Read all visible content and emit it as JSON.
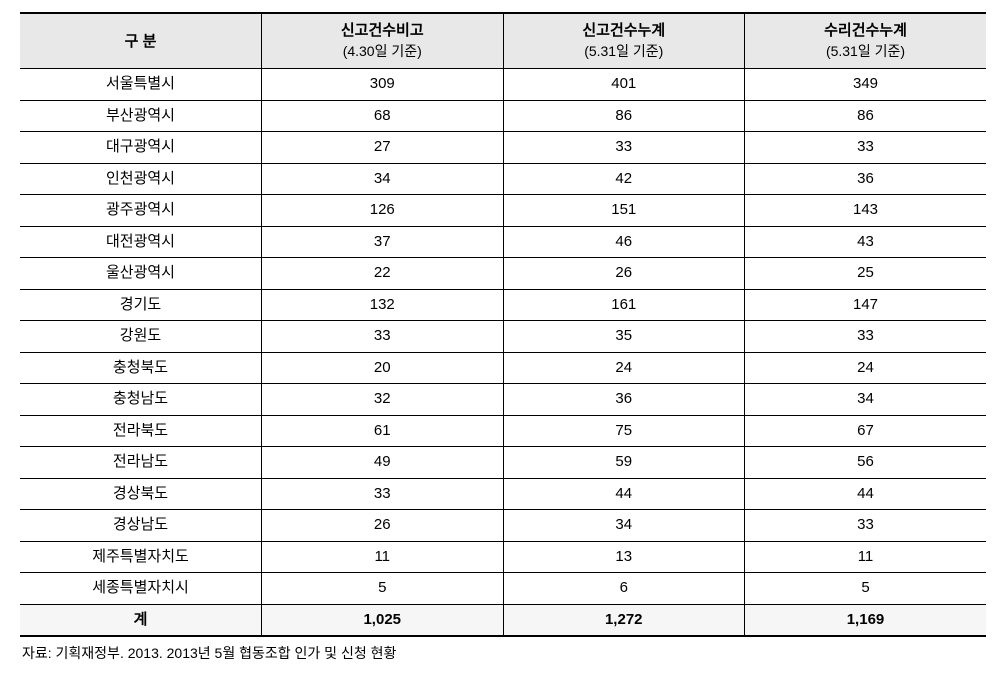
{
  "table": {
    "columns": [
      {
        "line1": "구 분",
        "line2": ""
      },
      {
        "line1": "신고건수비고",
        "line2": "(4.30일 기준)"
      },
      {
        "line1": "신고건수누계",
        "line2": "(5.31일 기준)"
      },
      {
        "line1": "수리건수누계",
        "line2": "(5.31일 기준)"
      }
    ],
    "rows": [
      {
        "region": "서울특별시",
        "v1": "309",
        "v2": "401",
        "v3": "349"
      },
      {
        "region": "부산광역시",
        "v1": "68",
        "v2": "86",
        "v3": "86"
      },
      {
        "region": "대구광역시",
        "v1": "27",
        "v2": "33",
        "v3": "33"
      },
      {
        "region": "인천광역시",
        "v1": "34",
        "v2": "42",
        "v3": "36"
      },
      {
        "region": "광주광역시",
        "v1": "126",
        "v2": "151",
        "v3": "143"
      },
      {
        "region": "대전광역시",
        "v1": "37",
        "v2": "46",
        "v3": "43"
      },
      {
        "region": "울산광역시",
        "v1": "22",
        "v2": "26",
        "v3": "25"
      },
      {
        "region": "경기도",
        "v1": "132",
        "v2": "161",
        "v3": "147"
      },
      {
        "region": "강원도",
        "v1": "33",
        "v2": "35",
        "v3": "33"
      },
      {
        "region": "충청북도",
        "v1": "20",
        "v2": "24",
        "v3": "24"
      },
      {
        "region": "충청남도",
        "v1": "32",
        "v2": "36",
        "v3": "34"
      },
      {
        "region": "전라북도",
        "v1": "61",
        "v2": "75",
        "v3": "67"
      },
      {
        "region": "전라남도",
        "v1": "49",
        "v2": "59",
        "v3": "56"
      },
      {
        "region": "경상북도",
        "v1": "33",
        "v2": "44",
        "v3": "44"
      },
      {
        "region": "경상남도",
        "v1": "26",
        "v2": "34",
        "v3": "33"
      },
      {
        "region": "제주특별자치도",
        "v1": "11",
        "v2": "13",
        "v3": "11"
      },
      {
        "region": "세종특별자치시",
        "v1": "5",
        "v2": "6",
        "v3": "5"
      }
    ],
    "total": {
      "label": "계",
      "v1": "1,025",
      "v2": "1,272",
      "v3": "1,169"
    },
    "footnote": "자료: 기획재정부. 2013. 2013년 5월 협동조합 인가 및 신청 현황"
  },
  "styling": {
    "background_color": "#ffffff",
    "header_bg": "#e8e8e8",
    "total_bg": "#f6f6f6",
    "border_color": "#000000",
    "font_family": "Malgun Gothic",
    "header_fontsize": 15,
    "cell_fontsize": 15,
    "footnote_fontsize": 14,
    "column_widths_pct": [
      25,
      25,
      25,
      25
    ]
  }
}
